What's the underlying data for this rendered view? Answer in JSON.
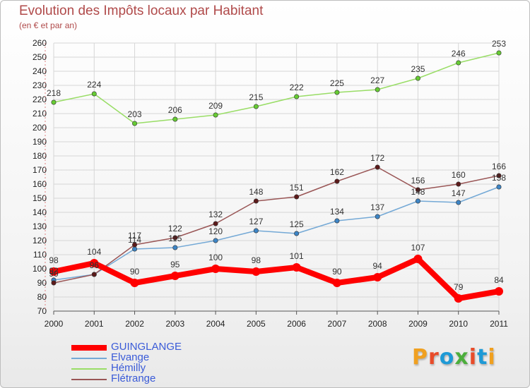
{
  "title": "Evolution des Impôts locaux par Habitant",
  "subtitle": "(en € et par an)",
  "logo": {
    "text": "Proxiti",
    "colors": [
      "#f0a020",
      "#e84c2a",
      "#1e9ad6",
      "#4cae3c",
      "#e84c2a",
      "#1e9ad6",
      "#f0a020"
    ]
  },
  "chart_data": {
    "type": "line",
    "x": [
      "2000",
      "2001",
      "2002",
      "2003",
      "2004",
      "2005",
      "2006",
      "2007",
      "2008",
      "2009",
      "2010",
      "2011"
    ],
    "ylim": [
      70,
      260
    ],
    "yticks": [
      70,
      80,
      90,
      100,
      110,
      120,
      130,
      140,
      150,
      160,
      170,
      180,
      190,
      200,
      210,
      220,
      230,
      240,
      250,
      260
    ],
    "grid": true,
    "legend": "bottom-left",
    "series": [
      {
        "name": "GUINGLANGE",
        "color": "#ff0000",
        "marker": "#ff0000",
        "width": 8,
        "values": [
          98,
          104,
          90,
          95,
          100,
          98,
          101,
          90,
          94,
          107,
          79,
          84
        ],
        "labels": [
          "98",
          "104",
          "90",
          "95",
          "100",
          "98",
          "101",
          "90",
          "94",
          "107",
          "79",
          "84"
        ]
      },
      {
        "name": "Elvange",
        "color": "#74a9d6",
        "marker": "#3d85c6",
        "width": 1.5,
        "values": [
          92,
          96,
          114,
          115,
          120,
          127,
          125,
          134,
          137,
          148,
          147,
          158
        ],
        "labels": [
          "92",
          "96",
          "114",
          "115",
          "120",
          "127",
          "125",
          "134",
          "137",
          "148",
          "147",
          "158"
        ]
      },
      {
        "name": "Hémilly",
        "color": "#99dd66",
        "marker": "#66cc33",
        "width": 1.5,
        "values": [
          218,
          224,
          203,
          206,
          209,
          215,
          222,
          225,
          227,
          235,
          246,
          253
        ],
        "labels": [
          "218",
          "224",
          "203",
          "206",
          "209",
          "215",
          "222",
          "225",
          "227",
          "235",
          "246",
          "253"
        ]
      },
      {
        "name": "Flétrange",
        "color": "#995555",
        "marker": "#5c1a1a",
        "width": 1.5,
        "values": [
          90,
          96,
          117,
          122,
          132,
          148,
          151,
          162,
          172,
          156,
          160,
          166
        ],
        "labels": [
          "90",
          "96",
          "117",
          "122",
          "132",
          "148",
          "151",
          "162",
          "172",
          "156",
          "160",
          "166"
        ]
      }
    ]
  }
}
